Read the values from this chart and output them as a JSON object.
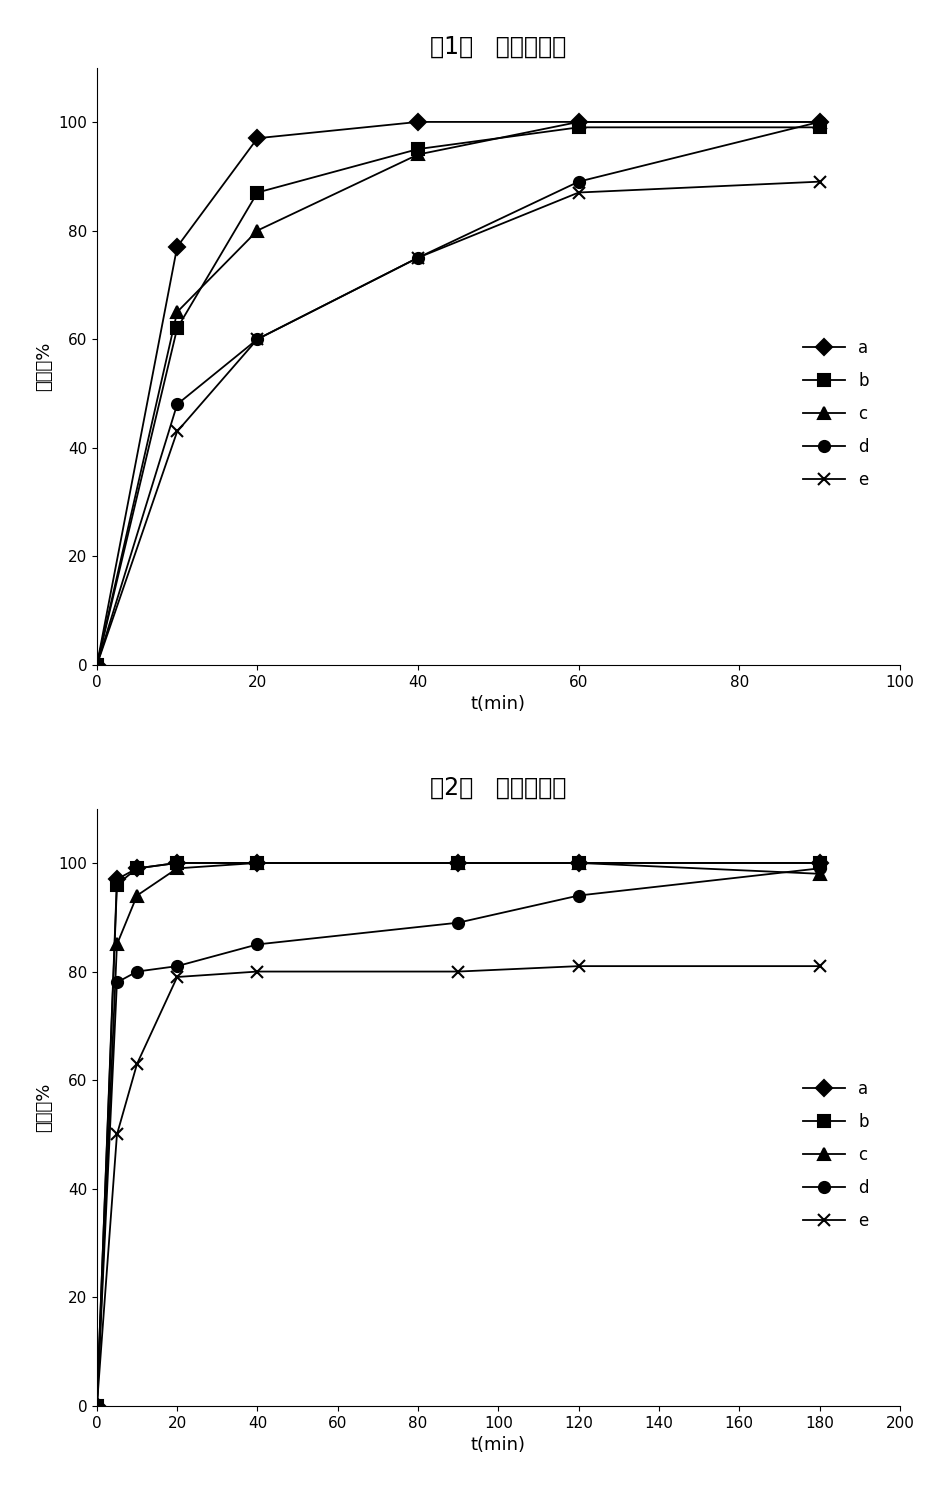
{
  "plot1": {
    "title1": "（1）",
    "title2": "可见光催化",
    "xlabel": "t(min)",
    "ylabel": "去除率%",
    "xlim": [
      0,
      100
    ],
    "ylim": [
      0,
      110
    ],
    "xticks": [
      0,
      20,
      40,
      60,
      80,
      100
    ],
    "yticks": [
      0,
      20,
      40,
      60,
      80,
      100
    ],
    "series": {
      "a": {
        "x": [
          0,
          10,
          20,
          40,
          60,
          90
        ],
        "y": [
          0,
          77,
          97,
          100,
          100,
          100
        ],
        "marker": "D"
      },
      "b": {
        "x": [
          0,
          10,
          20,
          40,
          60,
          90
        ],
        "y": [
          0,
          62,
          87,
          95,
          99,
          99
        ],
        "marker": "s"
      },
      "c": {
        "x": [
          0,
          10,
          20,
          40,
          60,
          90
        ],
        "y": [
          0,
          65,
          80,
          94,
          100,
          100
        ],
        "marker": "^"
      },
      "d": {
        "x": [
          0,
          10,
          20,
          40,
          60,
          90
        ],
        "y": [
          0,
          48,
          60,
          75,
          89,
          100
        ],
        "marker": "o"
      },
      "e": {
        "x": [
          0,
          10,
          20,
          40,
          60,
          90
        ],
        "y": [
          0,
          43,
          60,
          75,
          87,
          89
        ],
        "marker": "x"
      }
    }
  },
  "plot2": {
    "title1": "（2）",
    "title2": "太阳光催化",
    "xlabel": "t(min)",
    "ylabel": "去除率%",
    "xlim": [
      0,
      200
    ],
    "ylim": [
      0,
      110
    ],
    "xticks": [
      0,
      20,
      40,
      60,
      80,
      100,
      120,
      140,
      160,
      180,
      200
    ],
    "yticks": [
      0,
      20,
      40,
      60,
      80,
      100
    ],
    "series": {
      "a": {
        "x": [
          0,
          5,
          10,
          20,
          40,
          90,
          120,
          180
        ],
        "y": [
          0,
          97,
          99,
          100,
          100,
          100,
          100,
          100
        ],
        "marker": "D"
      },
      "b": {
        "x": [
          0,
          5,
          10,
          20,
          40,
          90,
          120,
          180
        ],
        "y": [
          0,
          96,
          99,
          100,
          100,
          100,
          100,
          100
        ],
        "marker": "s"
      },
      "c": {
        "x": [
          0,
          5,
          10,
          20,
          40,
          90,
          120,
          180
        ],
        "y": [
          0,
          85,
          94,
          99,
          100,
          100,
          100,
          98
        ],
        "marker": "^"
      },
      "d": {
        "x": [
          0,
          5,
          10,
          20,
          40,
          90,
          120,
          180
        ],
        "y": [
          0,
          78,
          80,
          81,
          85,
          89,
          94,
          99
        ],
        "marker": "o"
      },
      "e": {
        "x": [
          0,
          5,
          10,
          20,
          40,
          90,
          120,
          180
        ],
        "y": [
          0,
          50,
          63,
          79,
          80,
          80,
          81,
          81
        ],
        "marker": "x"
      }
    }
  },
  "line_color": "#000000",
  "background_color": "#ffffff",
  "fontsize_title": 17,
  "fontsize_label": 13,
  "fontsize_tick": 11,
  "fontsize_legend": 12
}
